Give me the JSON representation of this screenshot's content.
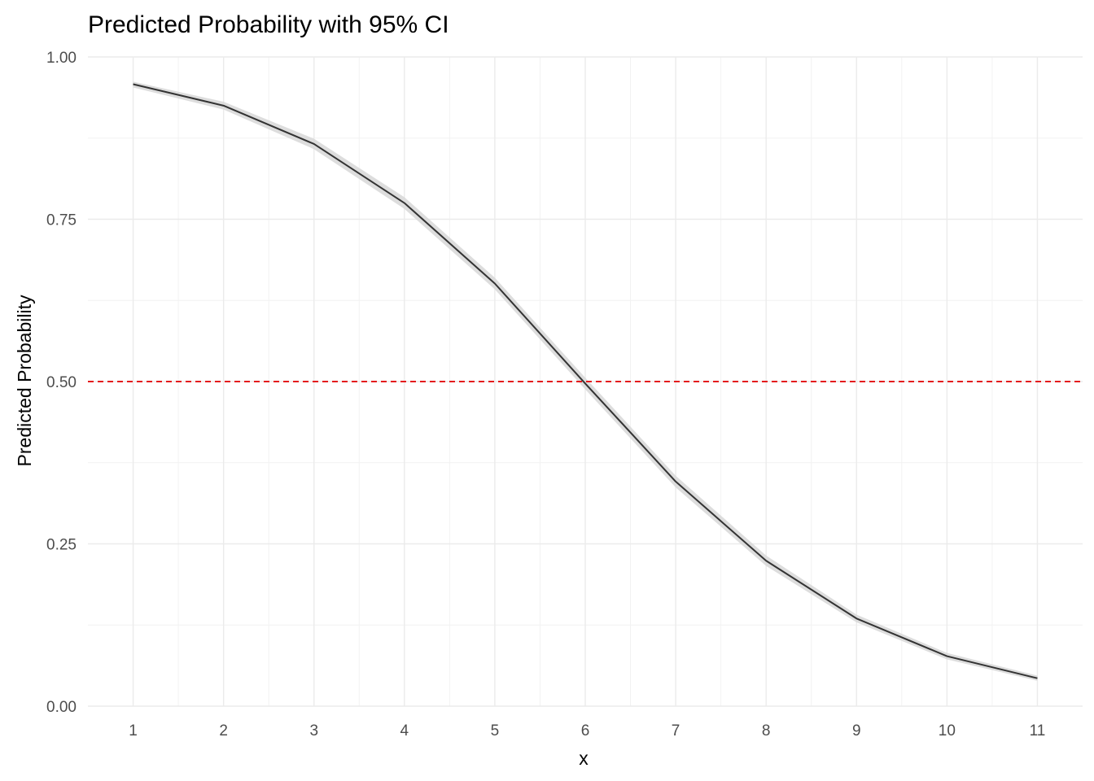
{
  "chart_data": {
    "type": "line",
    "title": "Predicted Probability with 95% CI",
    "xlabel": "x",
    "ylabel": "Predicted Probability",
    "x": [
      1,
      2,
      3,
      4,
      5,
      6,
      7,
      8,
      9,
      10,
      11
    ],
    "xlim": [
      0.5,
      11.5
    ],
    "ylim": [
      0,
      1
    ],
    "x_ticks": [
      1,
      2,
      3,
      4,
      5,
      6,
      7,
      8,
      9,
      10,
      11
    ],
    "x_tick_labels": [
      "1",
      "2",
      "3",
      "4",
      "5",
      "6",
      "7",
      "8",
      "9",
      "10",
      "11"
    ],
    "y_ticks": [
      0,
      0.25,
      0.5,
      0.75,
      1
    ],
    "y_tick_labels": [
      "0.00",
      "0.25",
      "0.50",
      "0.75",
      "1.00"
    ],
    "series": [
      {
        "values": [
          0.958,
          0.925,
          0.866,
          0.775,
          0.651,
          0.497,
          0.346,
          0.224,
          0.135,
          0.077,
          0.043
        ],
        "ci_lower": [
          0.953,
          0.919,
          0.858,
          0.766,
          0.642,
          0.488,
          0.337,
          0.216,
          0.129,
          0.072,
          0.039
        ],
        "ci_upper": [
          0.962,
          0.931,
          0.874,
          0.784,
          0.66,
          0.506,
          0.355,
          0.232,
          0.141,
          0.082,
          0.047
        ],
        "color": "#333333",
        "ci_color": "#d9d9d9"
      }
    ],
    "reference_line": {
      "y": 0.5,
      "style": "dashed",
      "color": "#e41a1c"
    },
    "grid": true,
    "legend": "none"
  }
}
